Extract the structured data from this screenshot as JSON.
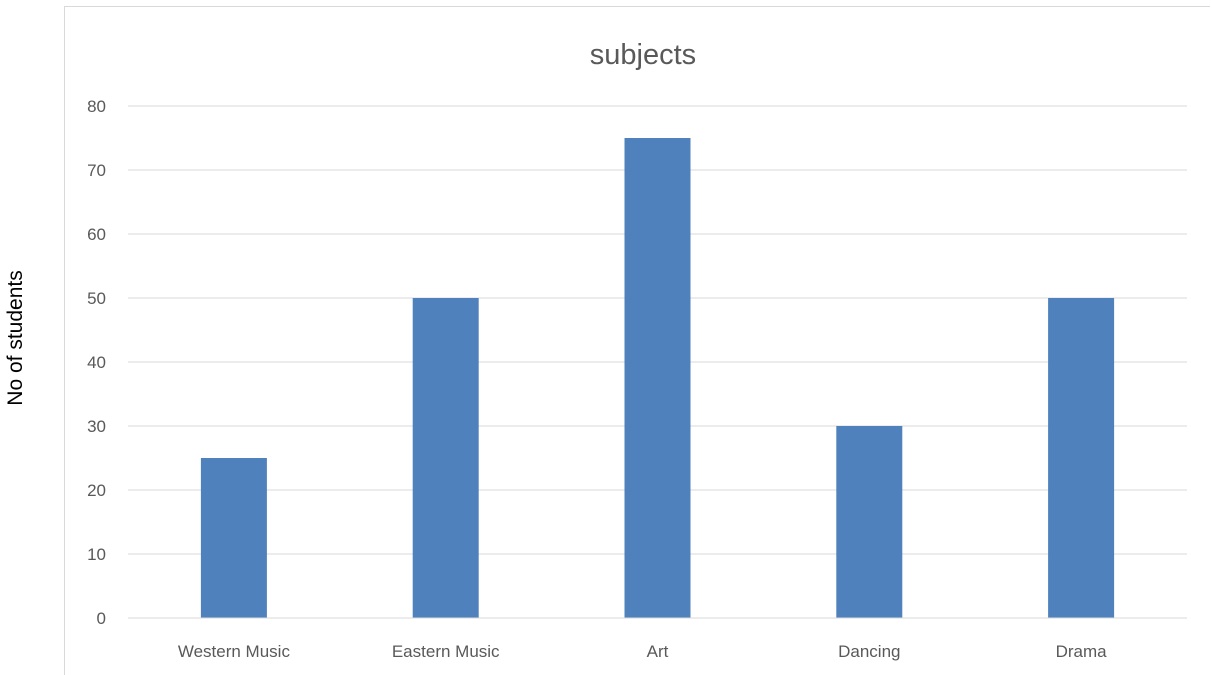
{
  "chart_data": {
    "type": "bar",
    "title": "subjects",
    "xlabel": "",
    "ylabel": "No of students",
    "categories": [
      "Western Music",
      "Eastern Music",
      "Art",
      "Dancing",
      "Drama"
    ],
    "values": [
      25,
      50,
      75,
      30,
      50
    ],
    "ylim": [
      0,
      80
    ],
    "yticks": [
      0,
      10,
      20,
      30,
      40,
      50,
      60,
      70,
      80
    ],
    "grid": true,
    "legend": "none",
    "colors": {
      "bar": "#4f81bd",
      "grid": "#d9d9d9",
      "text": "#595959",
      "title": "#595959",
      "ylabel": "#000000"
    }
  }
}
